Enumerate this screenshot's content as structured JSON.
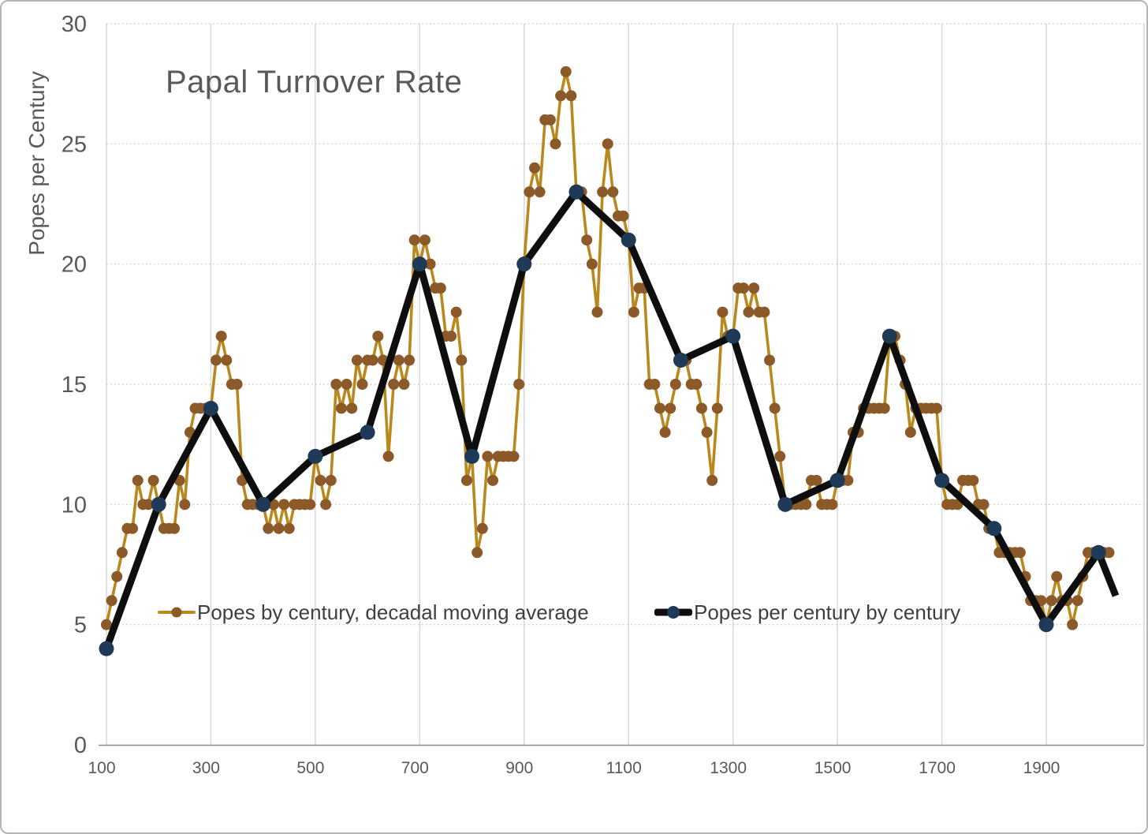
{
  "title": "Papal Turnover Rate",
  "y_axis": {
    "label": "Popes per Century"
  },
  "legend": [
    {
      "label": "Popes by century, decadal moving average"
    },
    {
      "label": "Popes per century by century"
    }
  ],
  "colors": {
    "gold_line": "#B9891E",
    "gold_marker": "#8B5A28",
    "black_line": "#0E0E0E",
    "navy_marker": "#1F3A56",
    "axis_text": "#595959",
    "legend_text": "#3F3F3F",
    "grid_vertical": "#D9D9D9",
    "grid_dotted": "#C6C6C6",
    "zero_axis": "#8C8C8C"
  },
  "chart_data": {
    "type": "line",
    "title": "Papal Turnover Rate",
    "xlabel": "",
    "ylabel": "Popes per Century",
    "ylim": [
      0,
      30
    ],
    "xlim": [
      100,
      2090
    ],
    "yticks": [
      0,
      5,
      10,
      15,
      20,
      25,
      30
    ],
    "xticks": [
      100,
      300,
      500,
      700,
      900,
      1100,
      1300,
      1500,
      1700,
      1900
    ],
    "grid": "vertical solid, horizontal dotted",
    "legend_position": "inside bottom",
    "series": [
      {
        "name": "Popes by century, decadal moving average",
        "x_start": 100,
        "x_step": 10,
        "values": [
          5,
          6,
          7,
          8,
          9,
          9,
          11,
          10,
          10,
          11,
          10,
          9,
          9,
          9,
          11,
          10,
          13,
          14,
          14,
          14,
          14,
          16,
          17,
          16,
          15,
          15,
          11,
          10,
          10,
          10,
          10,
          9,
          10,
          9,
          10,
          9,
          10,
          10,
          10,
          10,
          12,
          11,
          10,
          11,
          15,
          14,
          15,
          14,
          16,
          15,
          16,
          16,
          17,
          16,
          12,
          15,
          16,
          15,
          16,
          21,
          20,
          21,
          20,
          19,
          19,
          17,
          17,
          18,
          16,
          11,
          12,
          8,
          9,
          12,
          11,
          12,
          12,
          12,
          12,
          15,
          20,
          23,
          24,
          23,
          26,
          26,
          25,
          27,
          28,
          27,
          23,
          23,
          21,
          20,
          18,
          23,
          25,
          23,
          22,
          22,
          21,
          18,
          19,
          19,
          15,
          15,
          14,
          13,
          14,
          15,
          16,
          16,
          15,
          15,
          14,
          13,
          11,
          14,
          18,
          17,
          17,
          19,
          19,
          18,
          19,
          18,
          18,
          16,
          14,
          12,
          10,
          10,
          10,
          10,
          10,
          11,
          11,
          10,
          10,
          10,
          11,
          11,
          11,
          13,
          13,
          14,
          14,
          14,
          14,
          14,
          17,
          17,
          16,
          15,
          13,
          14,
          14,
          14,
          14,
          14,
          11,
          10,
          10,
          10,
          11,
          11,
          11,
          10,
          10,
          9,
          9,
          8,
          8,
          8,
          8,
          8,
          7,
          6,
          6,
          6,
          5,
          6,
          7,
          6,
          6,
          5,
          6,
          7,
          8,
          8,
          8,
          8,
          8
        ]
      },
      {
        "name": "Popes per century by century",
        "x_start": 100,
        "x_step": 100,
        "values": [
          4,
          10,
          14,
          10,
          12,
          13,
          20,
          12,
          20,
          23,
          21,
          16,
          17,
          10,
          11,
          17,
          11,
          9,
          5,
          8
        ],
        "line_extension": {
          "x": 2033,
          "y": 6.2
        }
      }
    ]
  }
}
